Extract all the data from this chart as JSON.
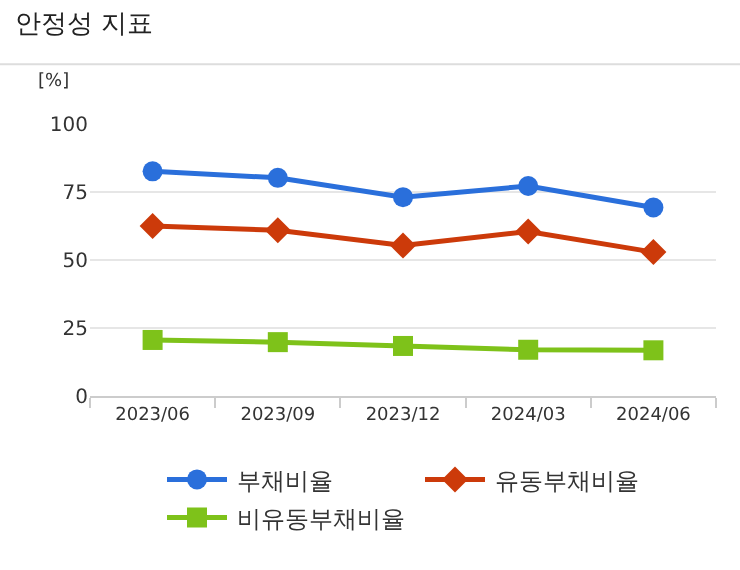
{
  "chart_data": {
    "type": "line",
    "title": "안정성 지표",
    "ylabel": "[%]",
    "categories": [
      "2023/06",
      "2023/09",
      "2023/12",
      "2024/03",
      "2024/06"
    ],
    "series": [
      {
        "name": "부채비율",
        "color": "#2a6fdb",
        "marker": "circle",
        "values": [
          82.6,
          80.2,
          73.1,
          77.2,
          69.3
        ]
      },
      {
        "name": "유동부채비율",
        "color": "#cc3a0a",
        "marker": "diamond",
        "values": [
          62.5,
          60.9,
          55.3,
          60.5,
          52.9
        ]
      },
      {
        "name": "비유동부채비율",
        "color": "#7ec21a",
        "marker": "square",
        "values": [
          20.6,
          19.8,
          18.4,
          17.0,
          16.8
        ]
      }
    ],
    "ylim": [
      0,
      100
    ],
    "yticks": [
      0,
      25,
      50,
      75,
      100
    ],
    "grid": "y",
    "legend": "bottom"
  }
}
